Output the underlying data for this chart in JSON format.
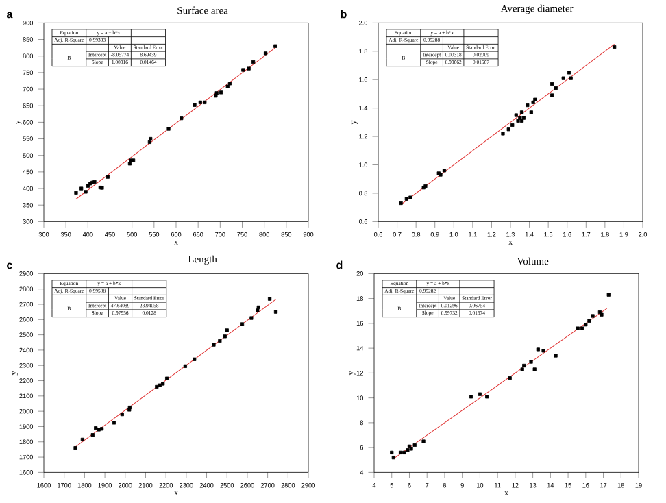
{
  "chart_data": [
    {
      "type": "scatter",
      "title": "Surface area",
      "xlabel": "x",
      "ylabel": "y",
      "annotations": [
        "a",
        "Equation",
        "y = a + b*x",
        "Adj. R-Square",
        "0.99393",
        "Value",
        "Standard Error",
        "B",
        "Intercept",
        "-8.05774",
        "8.69439",
        "Slope",
        "1.00916",
        "0.01464"
      ],
      "xlim": [
        300,
        900
      ],
      "ylim": [
        300,
        900
      ],
      "xticks": [
        300,
        350,
        400,
        450,
        500,
        550,
        600,
        650,
        700,
        750,
        800,
        850,
        900
      ],
      "yticks": [
        300,
        350,
        400,
        450,
        500,
        550,
        600,
        650,
        700,
        750,
        800,
        850,
        900
      ],
      "series": [
        {
          "type": "scatter",
          "color": "#000000",
          "marker": "square",
          "x": [
            373,
            385,
            395,
            400,
            405,
            410,
            415,
            428,
            432,
            445,
            495,
            497,
            503,
            540,
            542,
            583,
            612,
            642,
            655,
            665,
            690,
            692,
            702,
            717,
            722,
            752,
            765,
            775,
            803,
            825
          ],
          "values": [
            387,
            400,
            390,
            408,
            415,
            418,
            420,
            403,
            402,
            435,
            475,
            485,
            485,
            540,
            550,
            580,
            612,
            652,
            660,
            660,
            680,
            688,
            690,
            708,
            717,
            758,
            762,
            782,
            808,
            830
          ]
        },
        {
          "type": "line",
          "color": "#e03030",
          "marker": "none",
          "x": [
            373,
            825
          ],
          "values": [
            368,
            825
          ]
        }
      ]
    },
    {
      "type": "scatter",
      "title": "Average diameter",
      "xlabel": "x",
      "ylabel": "y",
      "annotations": [
        "b",
        "Equation",
        "y = a + b*x",
        "Adj. R-Square",
        "0.99288",
        "Value",
        "Standard Error",
        "B",
        "Intercept",
        "0.00318",
        "0.02009",
        "Slope",
        "0.99662",
        "0.01567"
      ],
      "xlim": [
        0.6,
        2.0
      ],
      "ylim": [
        0.6,
        2.0
      ],
      "xticks": [
        0.6,
        0.7,
        0.8,
        0.9,
        {
          "value": 1,
          "label": "1.0"
        },
        1.1,
        1.2,
        1.3,
        1.4,
        1.5,
        1.6,
        1.7,
        1.8,
        1.9,
        {
          "value": 2,
          "label": "2.0"
        }
      ],
      "yticks": [
        0.6,
        0.8,
        {
          "value": 1,
          "label": "1.0"
        },
        1.2,
        1.4,
        1.6,
        1.8,
        {
          "value": 2,
          "label": "2.0"
        }
      ],
      "series": [
        {
          "type": "scatter",
          "color": "#000000",
          "marker": "square",
          "x": [
            0.72,
            0.75,
            0.77,
            0.84,
            0.85,
            0.92,
            0.93,
            0.95,
            1.26,
            1.29,
            1.31,
            1.33,
            1.34,
            1.35,
            1.36,
            1.36,
            1.37,
            1.39,
            1.41,
            1.42,
            1.43,
            1.52,
            1.52,
            1.54,
            1.58,
            1.61,
            1.62,
            1.85
          ],
          "values": [
            0.73,
            0.76,
            0.77,
            0.84,
            0.85,
            0.94,
            0.93,
            0.96,
            1.22,
            1.25,
            1.28,
            1.35,
            1.31,
            1.33,
            1.37,
            1.31,
            1.33,
            1.42,
            1.37,
            1.44,
            1.46,
            1.57,
            1.49,
            1.54,
            1.61,
            1.65,
            1.61,
            1.83
          ]
        },
        {
          "type": "line",
          "color": "#e03030",
          "marker": "none",
          "x": [
            0.72,
            1.85
          ],
          "values": [
            0.72,
            1.85
          ]
        }
      ]
    },
    {
      "type": "scatter",
      "title": "Length",
      "xlabel": "x",
      "ylabel": "y",
      "annotations": [
        "c",
        "Equation",
        "y = a + b*x",
        "Adj. R-Square",
        "0.99508",
        "Value",
        "Standard Error",
        "B",
        "Intercept",
        "47.64089",
        "28.94058",
        "Slope",
        "0.97956",
        "0.0128"
      ],
      "xlim": [
        1600,
        2900
      ],
      "ylim": [
        1600,
        2900
      ],
      "xticks": [
        1600,
        1700,
        1800,
        1900,
        2000,
        2100,
        2200,
        2300,
        2400,
        2500,
        2600,
        2700,
        2800,
        2900
      ],
      "yticks": [
        1600,
        1700,
        1800,
        1900,
        2000,
        2100,
        2200,
        2300,
        2400,
        2500,
        2600,
        2700,
        2800,
        2900
      ],
      "series": [
        {
          "type": "scatter",
          "color": "#000000",
          "marker": "square",
          "x": [
            1755,
            1790,
            1840,
            1855,
            1870,
            1885,
            1945,
            1985,
            2020,
            2022,
            2155,
            2170,
            2185,
            2205,
            2295,
            2340,
            2435,
            2465,
            2490,
            2500,
            2575,
            2620,
            2650,
            2655,
            2710,
            2740
          ],
          "values": [
            1760,
            1815,
            1845,
            1890,
            1880,
            1885,
            1925,
            1980,
            2010,
            2025,
            2160,
            2170,
            2180,
            2215,
            2295,
            2340,
            2435,
            2460,
            2490,
            2530,
            2570,
            2610,
            2660,
            2680,
            2735,
            2650
          ]
        },
        {
          "type": "line",
          "color": "#e03030",
          "marker": "none",
          "x": [
            1755,
            2740
          ],
          "values": [
            1767,
            2732
          ]
        }
      ]
    },
    {
      "type": "scatter",
      "title": "Volume",
      "xlabel": "x",
      "ylabel": "y",
      "annotations": [
        "d",
        "Equation",
        "y = a + b*x",
        "Adj. R-Square",
        "0.99282",
        "Value",
        "Standard Error",
        "B",
        "Intercept",
        "0.01296",
        "0.06754",
        "Slope",
        "0.99732",
        "0.01574"
      ],
      "xlim": [
        4,
        19
      ],
      "ylim": [
        4,
        20
      ],
      "xticks": [
        4,
        5,
        6,
        7,
        8,
        9,
        10,
        11,
        12,
        13,
        14,
        15,
        16,
        17,
        18,
        19
      ],
      "yticks": [
        4,
        6,
        8,
        10,
        12,
        14,
        16,
        18,
        20
      ],
      "series": [
        {
          "type": "scatter",
          "color": "#000000",
          "marker": "square",
          "x": [
            5.0,
            5.1,
            5.5,
            5.7,
            5.9,
            6.0,
            6.1,
            6.3,
            6.8,
            9.5,
            10.0,
            10.4,
            11.7,
            12.4,
            12.5,
            12.9,
            13.1,
            13.3,
            13.6,
            14.3,
            15.55,
            15.8,
            16.0,
            16.2,
            16.4,
            16.8,
            16.9,
            17.3
          ],
          "values": [
            5.6,
            5.2,
            5.6,
            5.6,
            5.8,
            6.1,
            5.9,
            6.2,
            6.5,
            10.1,
            10.3,
            10.1,
            11.6,
            12.3,
            12.6,
            12.9,
            12.3,
            13.9,
            13.8,
            13.4,
            15.6,
            15.6,
            15.9,
            16.2,
            16.6,
            16.9,
            16.7,
            18.3
          ]
        },
        {
          "type": "line",
          "color": "#e03030",
          "marker": "none",
          "x": [
            5.1,
            17.2
          ],
          "values": [
            5.1,
            17.2
          ]
        }
      ]
    }
  ]
}
